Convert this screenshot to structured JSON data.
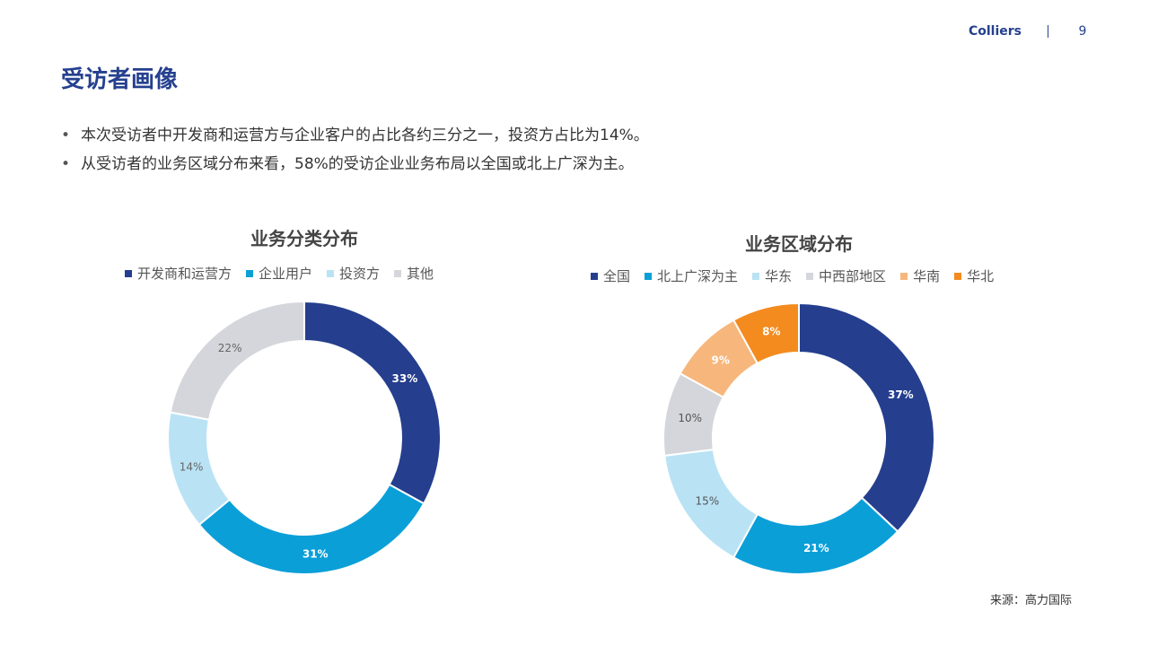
{
  "header": {
    "brand": "Colliers",
    "page_number": "9"
  },
  "title": "受访者画像",
  "bullets": [
    {
      "marker": "•",
      "text": "本次受访者中开发商和运营方与企业客户的占比各约三分之一，投资方占比为14%。"
    },
    {
      "marker": "•",
      "text": "从受访者的业务区域分布来看，58%的受访企业业务布局以全国或北上广深为主。"
    }
  ],
  "source": "来源：高力国际",
  "chart_data": [
    {
      "type": "pie",
      "variant": "donut",
      "title": "业务分类分布",
      "legend_position": "top",
      "categories": [
        "开发商和运营方",
        "企业用户",
        "投资方",
        "其他"
      ],
      "values": [
        33,
        31,
        14,
        22
      ],
      "labels": [
        "33%",
        "31%",
        "14%",
        "22%"
      ],
      "colors": [
        "#253e8e",
        "#0b9fd8",
        "#b9e3f5",
        "#d5d6dc"
      ],
      "label_colors": [
        "#ffffff",
        "#ffffff",
        "#666666",
        "#666666"
      ]
    },
    {
      "type": "pie",
      "variant": "donut",
      "title": "业务区域分布",
      "legend_position": "top",
      "categories": [
        "全国",
        "北上广深为主",
        "华东",
        "中西部地区",
        "华南",
        "华北"
      ],
      "values": [
        37,
        21,
        15,
        10,
        9,
        8
      ],
      "labels": [
        "37%",
        "21%",
        "15%",
        "10%",
        "9%",
        "8%"
      ],
      "colors": [
        "#253e8e",
        "#0b9fd8",
        "#b9e3f5",
        "#d5d6dc",
        "#f7b77c",
        "#f38b1f"
      ],
      "label_colors": [
        "#ffffff",
        "#ffffff",
        "#555555",
        "#555555",
        "#ffffff",
        "#ffffff"
      ]
    }
  ]
}
